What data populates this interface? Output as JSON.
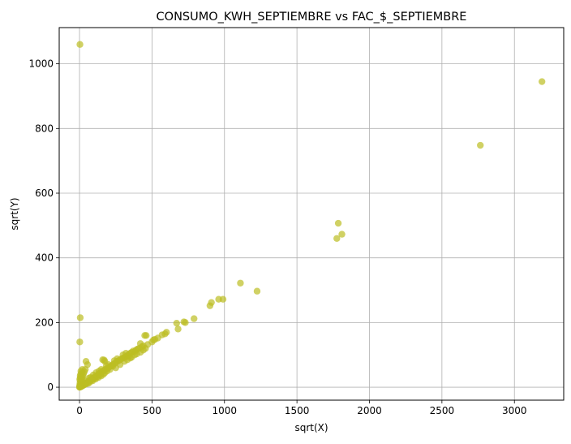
{
  "chart_data": {
    "type": "scatter",
    "title": "CONSUMO_KWH_SEPTIEMBRE vs FAC_$_SEPTIEMBRE",
    "xlabel": "sqrt(X)",
    "ylabel": "sqrt(Y)",
    "xlim": [
      -140,
      3340
    ],
    "ylim": [
      -40,
      1112
    ],
    "xticks": [
      0,
      500,
      1000,
      1500,
      2000,
      2500,
      3000
    ],
    "yticks": [
      0,
      200,
      400,
      600,
      800,
      1000
    ],
    "grid": true,
    "point_color": "#bcbd22",
    "series": [
      {
        "points": [
          [
            3,
            1060
          ],
          [
            5,
            215
          ],
          [
            2,
            140
          ],
          [
            3190,
            945
          ],
          [
            2765,
            748
          ],
          [
            1785,
            507
          ],
          [
            1775,
            460
          ],
          [
            1810,
            473
          ],
          [
            1110,
            322
          ],
          [
            1225,
            297
          ],
          [
            990,
            272
          ],
          [
            960,
            272
          ],
          [
            900,
            252
          ],
          [
            910,
            262
          ],
          [
            790,
            212
          ],
          [
            730,
            200
          ],
          [
            720,
            202
          ],
          [
            680,
            180
          ],
          [
            670,
            198
          ],
          [
            600,
            170
          ],
          [
            590,
            165
          ],
          [
            570,
            162
          ],
          [
            540,
            152
          ],
          [
            520,
            148
          ],
          [
            510,
            146
          ],
          [
            500,
            140
          ],
          [
            470,
            132
          ],
          [
            460,
            160
          ],
          [
            450,
            160
          ],
          [
            440,
            128
          ],
          [
            430,
            125
          ],
          [
            420,
            135
          ],
          [
            410,
            120
          ],
          [
            400,
            118
          ],
          [
            390,
            115
          ],
          [
            380,
            110
          ],
          [
            370,
            112
          ],
          [
            360,
            108
          ],
          [
            350,
            105
          ],
          [
            340,
            102
          ],
          [
            330,
            98
          ],
          [
            320,
            95
          ],
          [
            310,
            92
          ],
          [
            300,
            90
          ],
          [
            290,
            88
          ],
          [
            280,
            85
          ],
          [
            270,
            82
          ],
          [
            260,
            80
          ],
          [
            250,
            76
          ],
          [
            240,
            73
          ],
          [
            230,
            70
          ],
          [
            220,
            66
          ],
          [
            210,
            64
          ],
          [
            200,
            60
          ],
          [
            190,
            58
          ],
          [
            180,
            56
          ],
          [
            170,
            52
          ],
          [
            160,
            50
          ],
          [
            150,
            46
          ],
          [
            140,
            43
          ],
          [
            130,
            40
          ],
          [
            120,
            36
          ],
          [
            110,
            33
          ],
          [
            100,
            30
          ],
          [
            90,
            27
          ],
          [
            80,
            24
          ],
          [
            70,
            20
          ],
          [
            60,
            18
          ],
          [
            50,
            14
          ],
          [
            40,
            12
          ],
          [
            30,
            9
          ],
          [
            20,
            6
          ],
          [
            10,
            3
          ],
          [
            5,
            2
          ],
          [
            2,
            0
          ],
          [
            0,
            0
          ],
          [
            1,
            5
          ],
          [
            3,
            12
          ],
          [
            4,
            20
          ],
          [
            6,
            30
          ],
          [
            8,
            40
          ],
          [
            10,
            50
          ],
          [
            5,
            35
          ],
          [
            2,
            25
          ],
          [
            15,
            45
          ],
          [
            20,
            55
          ],
          [
            45,
            80
          ],
          [
            55,
            70
          ],
          [
            160,
            85
          ],
          [
            170,
            84
          ],
          [
            175,
            80
          ],
          [
            340,
            95
          ],
          [
            360,
            93
          ],
          [
            380,
            100
          ],
          [
            395,
            103
          ],
          [
            420,
            108
          ],
          [
            440,
            115
          ],
          [
            455,
            120
          ],
          [
            300,
            100
          ],
          [
            320,
            105
          ],
          [
            260,
            88
          ],
          [
            240,
            82
          ],
          [
            200,
            70
          ],
          [
            185,
            66
          ],
          [
            150,
            55
          ],
          [
            135,
            50
          ],
          [
            115,
            45
          ],
          [
            95,
            38
          ],
          [
            75,
            30
          ],
          [
            65,
            28
          ],
          [
            35,
            20
          ],
          [
            25,
            15
          ],
          [
            150,
            35
          ],
          [
            130,
            30
          ],
          [
            110,
            25
          ],
          [
            90,
            20
          ],
          [
            70,
            15
          ],
          [
            250,
            60
          ],
          [
            280,
            70
          ],
          [
            310,
            80
          ],
          [
            330,
            85
          ],
          [
            350,
            90
          ],
          [
            230,
            65
          ],
          [
            210,
            55
          ],
          [
            190,
            50
          ],
          [
            175,
            45
          ],
          [
            165,
            40
          ],
          [
            145,
            38
          ],
          [
            125,
            33
          ],
          [
            105,
            28
          ],
          [
            85,
            22
          ],
          [
            60,
            12
          ],
          [
            45,
            10
          ],
          [
            35,
            8
          ],
          [
            25,
            5
          ],
          [
            15,
            4
          ],
          [
            12,
            2
          ],
          [
            7,
            1
          ],
          [
            4,
            3
          ],
          [
            6,
            8
          ],
          [
            9,
            15
          ],
          [
            14,
            25
          ],
          [
            18,
            30
          ],
          [
            22,
            35
          ],
          [
            28,
            42
          ],
          [
            33,
            48
          ],
          [
            40,
            55
          ]
        ]
      }
    ]
  }
}
